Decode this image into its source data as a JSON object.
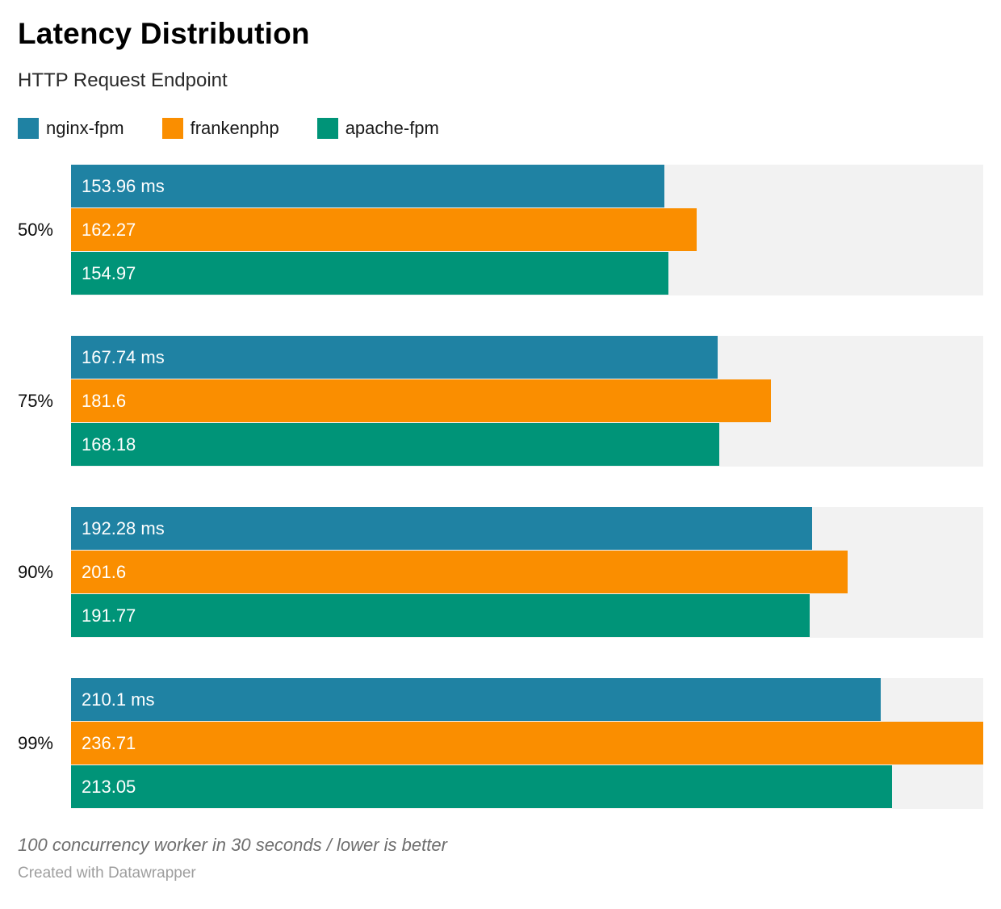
{
  "header": {
    "title": "Latency Distribution",
    "subtitle": "HTTP Request Endpoint"
  },
  "legend": {
    "items": [
      {
        "name": "nginx-fpm-swatch",
        "label": "nginx-fpm",
        "color": "#1f82a3"
      },
      {
        "name": "frankenphp-swatch",
        "label": "frankenphp",
        "color": "#fa8e00"
      },
      {
        "name": "apache-fpm-swatch",
        "label": "apache-fpm",
        "color": "#009478"
      }
    ]
  },
  "chart_data": {
    "type": "bar",
    "orientation": "horizontal",
    "title": "Latency Distribution",
    "subtitle": "HTTP Request Endpoint",
    "unit": "ms",
    "categories": [
      "50%",
      "75%",
      "90%",
      "99%"
    ],
    "series": [
      {
        "name": "nginx-fpm",
        "color": "#1f82a3",
        "values": [
          153.96,
          167.74,
          192.28,
          210.1
        ]
      },
      {
        "name": "frankenphp",
        "color": "#fa8e00",
        "values": [
          162.27,
          181.6,
          201.6,
          236.71
        ]
      },
      {
        "name": "apache-fpm",
        "color": "#009478",
        "values": [
          154.97,
          168.18,
          191.77,
          213.05
        ]
      }
    ],
    "bar_labels": [
      [
        "153.96 ms",
        "162.27",
        "154.97"
      ],
      [
        "167.74 ms",
        "181.6",
        "168.18"
      ],
      [
        "192.28 ms",
        "201.6",
        "191.77"
      ],
      [
        "210.1 ms",
        "236.71",
        "213.05"
      ]
    ],
    "xlim": [
      0,
      236.71
    ],
    "track_color": "#f2f2f2",
    "grid": false,
    "legend_position": "top"
  },
  "footer": {
    "note": "100 concurrency worker in 30 seconds / lower is better",
    "credit": "Created with Datawrapper"
  }
}
